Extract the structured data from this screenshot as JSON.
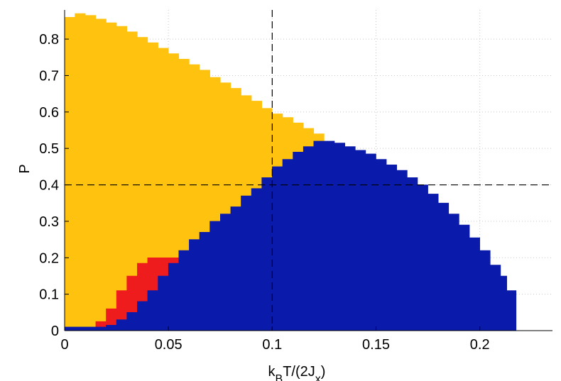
{
  "chart_data": {
    "type": "area",
    "title": "",
    "xlabel": "k_B T/(2J_x)",
    "ylabel": "P",
    "xlim": [
      0,
      0.235
    ],
    "ylim": [
      0,
      0.88
    ],
    "grid": "dotted",
    "x_ticks": [
      0,
      0.05,
      0.1,
      0.15,
      0.2
    ],
    "x_tick_labels": [
      "0",
      "0.05",
      "0.1",
      "0.15",
      "0.2"
    ],
    "y_ticks": [
      0,
      0.1,
      0.2,
      0.3,
      0.4,
      0.5,
      0.6,
      0.7,
      0.8
    ],
    "y_tick_labels": [
      "0",
      "0.1",
      "0.2",
      "0.3",
      "0.4",
      "0.5",
      "0.6",
      "0.7",
      "0.8"
    ],
    "dashed_lines": {
      "x": 0.1,
      "y": 0.4
    },
    "regions": [
      {
        "color": "#FFC20E",
        "boundary": [
          [
            0,
            0.86
          ],
          [
            0.005,
            0.86
          ],
          [
            0.005,
            0.87
          ],
          [
            0.01,
            0.87
          ],
          [
            0.01,
            0.865
          ],
          [
            0.015,
            0.865
          ],
          [
            0.015,
            0.855
          ],
          [
            0.02,
            0.855
          ],
          [
            0.02,
            0.845
          ],
          [
            0.025,
            0.845
          ],
          [
            0.025,
            0.835
          ],
          [
            0.03,
            0.835
          ],
          [
            0.03,
            0.82
          ],
          [
            0.035,
            0.82
          ],
          [
            0.035,
            0.805
          ],
          [
            0.04,
            0.805
          ],
          [
            0.04,
            0.79
          ],
          [
            0.045,
            0.79
          ],
          [
            0.045,
            0.775
          ],
          [
            0.05,
            0.775
          ],
          [
            0.05,
            0.76
          ],
          [
            0.055,
            0.76
          ],
          [
            0.055,
            0.745
          ],
          [
            0.06,
            0.745
          ],
          [
            0.06,
            0.73
          ],
          [
            0.065,
            0.73
          ],
          [
            0.065,
            0.715
          ],
          [
            0.07,
            0.715
          ],
          [
            0.07,
            0.695
          ],
          [
            0.075,
            0.695
          ],
          [
            0.075,
            0.68
          ],
          [
            0.08,
            0.68
          ],
          [
            0.08,
            0.665
          ],
          [
            0.085,
            0.665
          ],
          [
            0.085,
            0.645
          ],
          [
            0.09,
            0.645
          ],
          [
            0.09,
            0.63
          ],
          [
            0.095,
            0.63
          ],
          [
            0.095,
            0.61
          ],
          [
            0.1,
            0.61
          ],
          [
            0.1,
            0.595
          ],
          [
            0.105,
            0.595
          ],
          [
            0.105,
            0.585
          ],
          [
            0.11,
            0.585
          ],
          [
            0.11,
            0.57
          ],
          [
            0.115,
            0.57
          ],
          [
            0.115,
            0.555
          ],
          [
            0.12,
            0.555
          ],
          [
            0.12,
            0.54
          ],
          [
            0.125,
            0.54
          ],
          [
            0.125,
            0.52
          ],
          [
            0.12,
            0.52
          ],
          [
            0.12,
            0.505
          ],
          [
            0.115,
            0.505
          ],
          [
            0.115,
            0.49
          ],
          [
            0.11,
            0.49
          ],
          [
            0.11,
            0.47
          ],
          [
            0.105,
            0.47
          ],
          [
            0.105,
            0.45
          ],
          [
            0.1,
            0.45
          ],
          [
            0.1,
            0.42
          ],
          [
            0.095,
            0.42
          ],
          [
            0.095,
            0.39
          ],
          [
            0.09,
            0.39
          ],
          [
            0.09,
            0.37
          ],
          [
            0.085,
            0.37
          ],
          [
            0.085,
            0.34
          ],
          [
            0.08,
            0.34
          ],
          [
            0.08,
            0.32
          ],
          [
            0.075,
            0.32
          ],
          [
            0.075,
            0.3
          ],
          [
            0.07,
            0.3
          ],
          [
            0.07,
            0.27
          ],
          [
            0.065,
            0.27
          ],
          [
            0.065,
            0.25
          ],
          [
            0.06,
            0.25
          ],
          [
            0.06,
            0.22
          ],
          [
            0.055,
            0.22
          ],
          [
            0.055,
            0.2
          ],
          [
            0.04,
            0.2
          ],
          [
            0.04,
            0.185
          ],
          [
            0.035,
            0.185
          ],
          [
            0.035,
            0.15
          ],
          [
            0.03,
            0.15
          ],
          [
            0.03,
            0.11
          ],
          [
            0.025,
            0.11
          ],
          [
            0.025,
            0.06
          ],
          [
            0.02,
            0.06
          ],
          [
            0.02,
            0.025
          ],
          [
            0.015,
            0.025
          ],
          [
            0.015,
            0.01
          ],
          [
            0,
            0.01
          ]
        ]
      },
      {
        "color": "#EE1C1C",
        "boundary": [
          [
            0.015,
            0.01
          ],
          [
            0.015,
            0.025
          ],
          [
            0.02,
            0.025
          ],
          [
            0.02,
            0.06
          ],
          [
            0.025,
            0.06
          ],
          [
            0.025,
            0.11
          ],
          [
            0.03,
            0.11
          ],
          [
            0.03,
            0.15
          ],
          [
            0.035,
            0.15
          ],
          [
            0.035,
            0.185
          ],
          [
            0.04,
            0.185
          ],
          [
            0.04,
            0.2
          ],
          [
            0.055,
            0.2
          ],
          [
            0.055,
            0.185
          ],
          [
            0.05,
            0.185
          ],
          [
            0.05,
            0.15
          ],
          [
            0.045,
            0.15
          ],
          [
            0.045,
            0.11
          ],
          [
            0.04,
            0.11
          ],
          [
            0.04,
            0.08
          ],
          [
            0.035,
            0.08
          ],
          [
            0.035,
            0.05
          ],
          [
            0.03,
            0.05
          ],
          [
            0.03,
            0.03
          ],
          [
            0.025,
            0.03
          ],
          [
            0.025,
            0.015
          ],
          [
            0.02,
            0.015
          ],
          [
            0.02,
            0.01
          ]
        ]
      },
      {
        "color": "#0A1AAA",
        "boundary": [
          [
            0,
            0
          ],
          [
            0,
            0.01
          ],
          [
            0.02,
            0.01
          ],
          [
            0.02,
            0.015
          ],
          [
            0.025,
            0.015
          ],
          [
            0.025,
            0.03
          ],
          [
            0.03,
            0.03
          ],
          [
            0.03,
            0.05
          ],
          [
            0.035,
            0.05
          ],
          [
            0.035,
            0.08
          ],
          [
            0.04,
            0.08
          ],
          [
            0.04,
            0.11
          ],
          [
            0.045,
            0.11
          ],
          [
            0.045,
            0.15
          ],
          [
            0.05,
            0.15
          ],
          [
            0.05,
            0.185
          ],
          [
            0.055,
            0.185
          ],
          [
            0.055,
            0.22
          ],
          [
            0.06,
            0.22
          ],
          [
            0.06,
            0.25
          ],
          [
            0.065,
            0.25
          ],
          [
            0.065,
            0.27
          ],
          [
            0.07,
            0.27
          ],
          [
            0.07,
            0.3
          ],
          [
            0.075,
            0.3
          ],
          [
            0.075,
            0.32
          ],
          [
            0.08,
            0.32
          ],
          [
            0.08,
            0.34
          ],
          [
            0.085,
            0.34
          ],
          [
            0.085,
            0.37
          ],
          [
            0.09,
            0.37
          ],
          [
            0.09,
            0.39
          ],
          [
            0.095,
            0.39
          ],
          [
            0.095,
            0.42
          ],
          [
            0.1,
            0.42
          ],
          [
            0.1,
            0.45
          ],
          [
            0.105,
            0.45
          ],
          [
            0.105,
            0.47
          ],
          [
            0.11,
            0.47
          ],
          [
            0.11,
            0.49
          ],
          [
            0.115,
            0.49
          ],
          [
            0.115,
            0.505
          ],
          [
            0.12,
            0.505
          ],
          [
            0.12,
            0.52
          ],
          [
            0.125,
            0.52
          ],
          [
            0.13,
            0.52
          ],
          [
            0.13,
            0.515
          ],
          [
            0.135,
            0.515
          ],
          [
            0.135,
            0.505
          ],
          [
            0.14,
            0.505
          ],
          [
            0.14,
            0.495
          ],
          [
            0.145,
            0.495
          ],
          [
            0.145,
            0.485
          ],
          [
            0.15,
            0.485
          ],
          [
            0.15,
            0.47
          ],
          [
            0.155,
            0.47
          ],
          [
            0.155,
            0.455
          ],
          [
            0.16,
            0.455
          ],
          [
            0.16,
            0.44
          ],
          [
            0.165,
            0.44
          ],
          [
            0.165,
            0.42
          ],
          [
            0.17,
            0.42
          ],
          [
            0.17,
            0.4
          ],
          [
            0.175,
            0.4
          ],
          [
            0.175,
            0.375
          ],
          [
            0.18,
            0.375
          ],
          [
            0.18,
            0.35
          ],
          [
            0.185,
            0.35
          ],
          [
            0.185,
            0.32
          ],
          [
            0.19,
            0.32
          ],
          [
            0.19,
            0.29
          ],
          [
            0.195,
            0.29
          ],
          [
            0.195,
            0.255
          ],
          [
            0.2,
            0.255
          ],
          [
            0.2,
            0.22
          ],
          [
            0.205,
            0.22
          ],
          [
            0.205,
            0.18
          ],
          [
            0.21,
            0.18
          ],
          [
            0.21,
            0.15
          ],
          [
            0.213,
            0.15
          ],
          [
            0.213,
            0.11
          ],
          [
            0.2175,
            0.11
          ],
          [
            0.2175,
            0
          ]
        ]
      }
    ]
  }
}
